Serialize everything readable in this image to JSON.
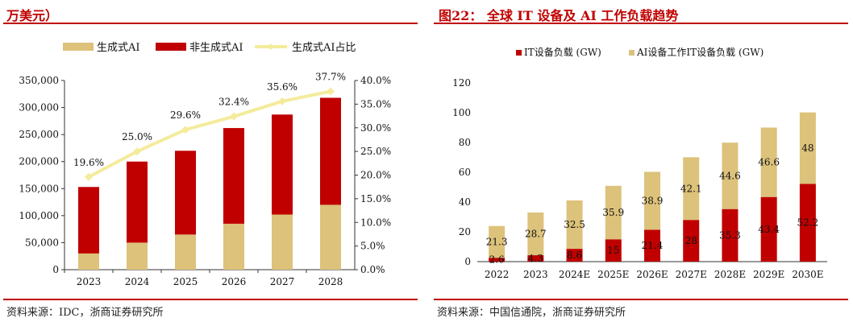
{
  "left": {
    "header": "万美元）",
    "source": "资料来源：IDC，浙商证券研究所",
    "legend_order": [
      0,
      1,
      2
    ]
  },
  "right": {
    "header": "图22：  全球 IT 设备及 AI 工作负载趋势",
    "source": "资料来源：中国信通院，浙商证券研究所"
  },
  "colors": {
    "gold": "#dcc27a",
    "red": "#c00000",
    "line": "#f4eb9c",
    "accent": "#c00000"
  },
  "chart_data": [
    {
      "type": "bar",
      "stacked": true,
      "categories": [
        "2023",
        "2024",
        "2025",
        "2026",
        "2027",
        "2028"
      ],
      "series": [
        {
          "name": "生成式AI",
          "values": [
            30000,
            50000,
            65000,
            85000,
            102000,
            120000
          ]
        },
        {
          "name": "非生成式AI",
          "values": [
            123000,
            150000,
            155000,
            177000,
            185000,
            198000
          ]
        },
        {
          "name": "生成式AI占比",
          "type": "line",
          "axis": "right",
          "values": [
            19.6,
            25.0,
            29.6,
            32.4,
            35.6,
            37.7
          ],
          "labels": [
            "19.6%",
            "25.0%",
            "29.6%",
            "32.4%",
            "35.6%",
            "37.7%"
          ]
        }
      ],
      "ylim": [
        0,
        350000
      ],
      "yticks": [
        "0",
        "50,000",
        "100,000",
        "150,000",
        "200,000",
        "250,000",
        "300,000",
        "350,000"
      ],
      "y2lim": [
        0,
        40
      ],
      "y2ticks": [
        "0.0%",
        "5.0%",
        "10.0%",
        "15.0%",
        "20.0%",
        "25.0%",
        "30.0%",
        "35.0%",
        "40.0%"
      ],
      "legend_position": "top"
    },
    {
      "type": "bar",
      "stacked": true,
      "categories": [
        "2022",
        "2023",
        "2024E",
        "2025E",
        "2026E",
        "2027E",
        "2028E",
        "2029E",
        "2030E"
      ],
      "series": [
        {
          "name": "IT设备负载 (GW)",
          "values": [
            2.6,
            4.3,
            8.6,
            15,
            21.4,
            28,
            35.3,
            43.4,
            52.2
          ],
          "labels": [
            "2.6",
            "4.3",
            "8.6",
            "15",
            "21.4",
            "28",
            "35.3",
            "43.4",
            "52.2"
          ]
        },
        {
          "name": "AI设备工作IT设备负载 (GW)",
          "values": [
            21.3,
            28.7,
            32.5,
            35.9,
            38.9,
            42.1,
            44.6,
            46.6,
            48
          ],
          "labels": [
            "21.3",
            "28.7",
            "32.5",
            "35.9",
            "38.9",
            "42.1",
            "44.6",
            "46.6",
            "48"
          ]
        }
      ],
      "ylim": [
        0,
        120
      ],
      "yticks": [
        "0",
        "20",
        "40",
        "60",
        "80",
        "100",
        "120"
      ],
      "legend_position": "top"
    }
  ]
}
